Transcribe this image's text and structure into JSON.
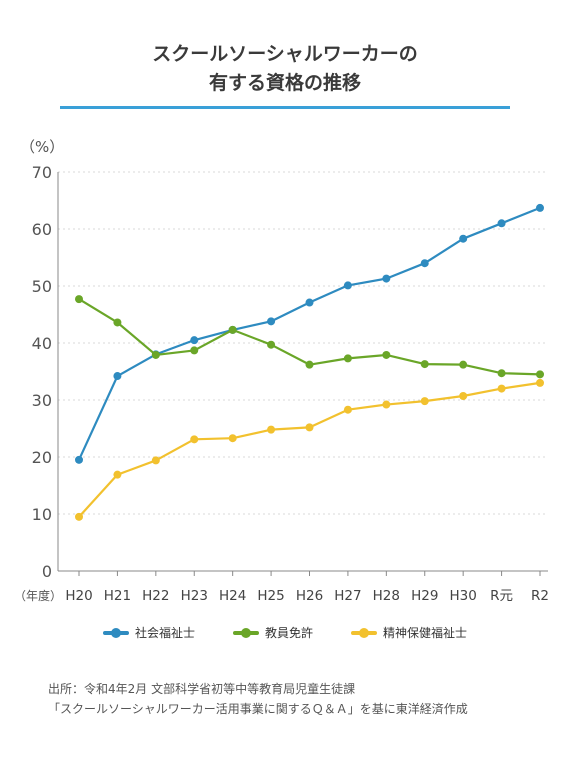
{
  "title": {
    "line1": "スクールソーシャルワーカーの",
    "line2": "有する資格の推移"
  },
  "y_unit": "（%）",
  "x_unit": "（年度）",
  "source": {
    "line1": "出所：令和4年2月 文部科学省初等中等教育局児童生徒課",
    "line2": "「スクールソーシャルワーカー活用事業に関するＱ＆Ａ」を基に東洋経済作成"
  },
  "colors": {
    "title_rule": "#3aa0d8",
    "grid": "#d8d8d8"
  },
  "chart_data": {
    "type": "line",
    "categories": [
      "H20",
      "H21",
      "H22",
      "H23",
      "H24",
      "H25",
      "H26",
      "H27",
      "H28",
      "H29",
      "H30",
      "R元",
      "R2"
    ],
    "ylim": [
      0,
      70
    ],
    "yticks": [
      0,
      10,
      20,
      30,
      40,
      50,
      60,
      70
    ],
    "grid": true,
    "legend_position": "bottom",
    "series": [
      {
        "name": "社会福祉士",
        "color": "#2e8bc0",
        "values": [
          19.5,
          34.2,
          38.0,
          40.5,
          42.3,
          43.8,
          47.1,
          50.1,
          51.3,
          54.0,
          58.3,
          61.0,
          63.7
        ]
      },
      {
        "name": "教員免許",
        "color": "#6aa628",
        "values": [
          47.7,
          43.6,
          37.9,
          38.7,
          42.3,
          39.7,
          36.2,
          37.3,
          37.9,
          36.3,
          36.2,
          34.7,
          34.5
        ]
      },
      {
        "name": "精神保健福祉士",
        "color": "#f2c12e",
        "values": [
          9.5,
          16.9,
          19.4,
          23.1,
          23.3,
          24.8,
          25.2,
          28.3,
          29.2,
          29.8,
          30.7,
          32.0,
          33.0
        ]
      }
    ]
  }
}
